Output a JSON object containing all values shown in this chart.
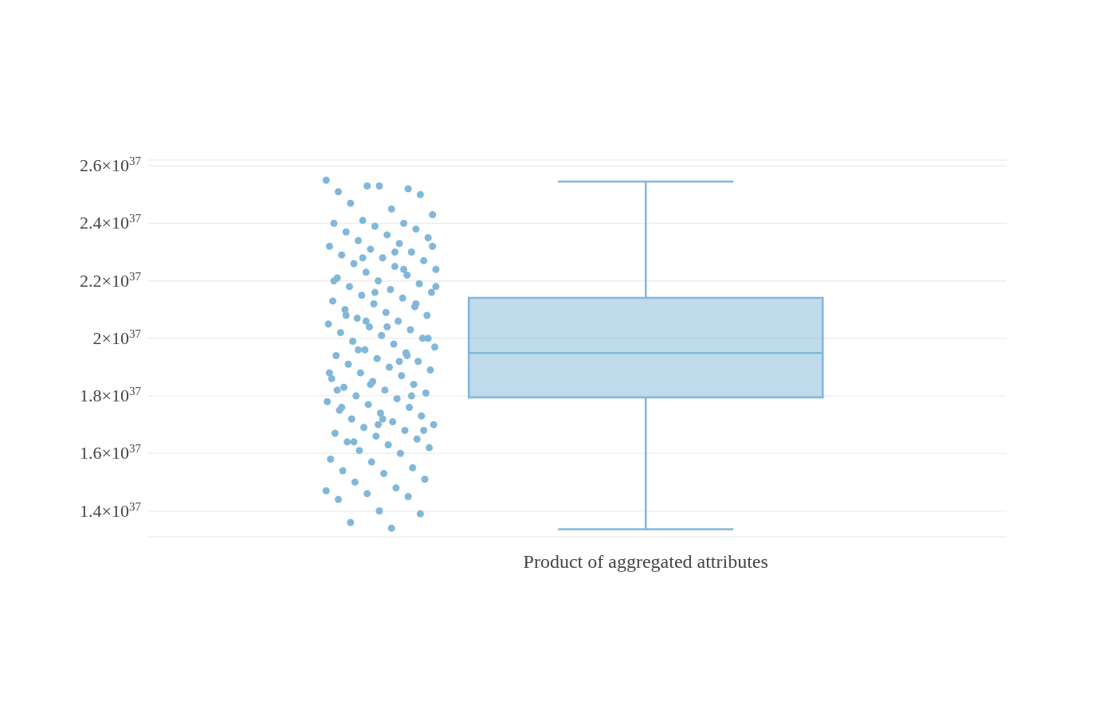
{
  "chart_data": {
    "type": "box",
    "categories": [
      "Product of aggregated attributes"
    ],
    "boxes": [
      {
        "low": 1.336e+37,
        "q1": 1.795e+37,
        "median": 1.949e+37,
        "q3": 2.141e+37,
        "high": 2.545e+37
      }
    ],
    "color": "#82b7d9",
    "series": [
      {
        "type": "scatter",
        "color": "#82b7d9",
        "x": [
          "Product of aggregated attributes",
          "Product of aggregated attributes",
          "Product of aggregated attributes",
          "Product of aggregated attributes",
          "Product of aggregated attributes",
          "Product of aggregated attributes",
          "Product of aggregated attributes",
          "Product of aggregated attributes",
          "Product of aggregated attributes",
          "Product of aggregated attributes",
          "Product of aggregated attributes",
          "Product of aggregated attributes",
          "Product of aggregated attributes",
          "Product of aggregated attributes",
          "Product of aggregated attributes",
          "Product of aggregated attributes",
          "Product of aggregated attributes",
          "Product of aggregated attributes",
          "Product of aggregated attributes",
          "Product of aggregated attributes",
          "Product of aggregated attributes",
          "Product of aggregated attributes",
          "Product of aggregated attributes",
          "Product of aggregated attributes",
          "Product of aggregated attributes",
          "Product of aggregated attributes",
          "Product of aggregated attributes",
          "Product of aggregated attributes",
          "Product of aggregated attributes",
          "Product of aggregated attributes",
          "Product of aggregated attributes",
          "Product of aggregated attributes",
          "Product of aggregated attributes",
          "Product of aggregated attributes",
          "Product of aggregated attributes",
          "Product of aggregated attributes",
          "Product of aggregated attributes",
          "Product of aggregated attributes",
          "Product of aggregated attributes",
          "Product of aggregated attributes",
          "Product of aggregated attributes",
          "Product of aggregated attributes",
          "Product of aggregated attributes",
          "Product of aggregated attributes",
          "Product of aggregated attributes",
          "Product of aggregated attributes",
          "Product of aggregated attributes",
          "Product of aggregated attributes",
          "Product of aggregated attributes",
          "Product of aggregated attributes",
          "Product of aggregated attributes",
          "Product of aggregated attributes",
          "Product of aggregated attributes",
          "Product of aggregated attributes",
          "Product of aggregated attributes",
          "Product of aggregated attributes",
          "Product of aggregated attributes",
          "Product of aggregated attributes",
          "Product of aggregated attributes",
          "Product of aggregated attributes",
          "Product of aggregated attributes",
          "Product of aggregated attributes",
          "Product of aggregated attributes",
          "Product of aggregated attributes",
          "Product of aggregated attributes",
          "Product of aggregated attributes",
          "Product of aggregated attributes",
          "Product of aggregated attributes",
          "Product of aggregated attributes",
          "Product of aggregated attributes",
          "Product of aggregated attributes",
          "Product of aggregated attributes",
          "Product of aggregated attributes",
          "Product of aggregated attributes",
          "Product of aggregated attributes",
          "Product of aggregated attributes",
          "Product of aggregated attributes",
          "Product of aggregated attributes",
          "Product of aggregated attributes",
          "Product of aggregated attributes",
          "Product of aggregated attributes",
          "Product of aggregated attributes",
          "Product of aggregated attributes",
          "Product of aggregated attributes",
          "Product of aggregated attributes",
          "Product of aggregated attributes",
          "Product of aggregated attributes",
          "Product of aggregated attributes",
          "Product of aggregated attributes",
          "Product of aggregated attributes",
          "Product of aggregated attributes",
          "Product of aggregated attributes",
          "Product of aggregated attributes",
          "Product of aggregated attributes",
          "Product of aggregated attributes",
          "Product of aggregated attributes",
          "Product of aggregated attributes",
          "Product of aggregated attributes",
          "Product of aggregated attributes",
          "Product of aggregated attributes",
          "Product of aggregated attributes",
          "Product of aggregated attributes",
          "Product of aggregated attributes",
          "Product of aggregated attributes",
          "Product of aggregated attributes",
          "Product of aggregated attributes",
          "Product of aggregated attributes",
          "Product of aggregated attributes",
          "Product of aggregated attributes",
          "Product of aggregated attributes",
          "Product of aggregated attributes",
          "Product of aggregated attributes",
          "Product of aggregated attributes",
          "Product of aggregated attributes",
          "Product of aggregated attributes",
          "Product of aggregated attributes",
          "Product of aggregated attributes",
          "Product of aggregated attributes",
          "Product of aggregated attributes",
          "Product of aggregated attributes",
          "Product of aggregated attributes",
          "Product of aggregated attributes",
          "Product of aggregated attributes",
          "Product of aggregated attributes",
          "Product of aggregated attributes",
          "Product of aggregated attributes",
          "Product of aggregated attributes",
          "Product of aggregated attributes",
          "Product of aggregated attributes",
          "Product of aggregated attributes",
          "Product of aggregated attributes",
          "Product of aggregated attributes"
        ],
        "values": [
          2.55e+37,
          2.53e+37,
          2.52e+37,
          2.51e+37,
          2.53e+37,
          2.5e+37,
          2.47e+37,
          2.45e+37,
          2.43e+37,
          2.41e+37,
          2.4e+37,
          2.4e+37,
          2.39e+37,
          2.38e+37,
          2.37e+37,
          2.36e+37,
          2.35e+37,
          2.34e+37,
          2.33e+37,
          2.32e+37,
          2.31e+37,
          2.3e+37,
          2.29e+37,
          2.28e+37,
          2.27e+37,
          2.26e+37,
          2.25e+37,
          2.24e+37,
          2.23e+37,
          2.22e+37,
          2.21e+37,
          2.2e+37,
          2.19e+37,
          2.18e+37,
          2.17e+37,
          2.16e+37,
          2.15e+37,
          2.14e+37,
          2.13e+37,
          2.12e+37,
          2.11e+37,
          2.1e+37,
          2.09e+37,
          2.08e+37,
          2.07e+37,
          2.06e+37,
          2.05e+37,
          2.04e+37,
          2.03e+37,
          2.02e+37,
          2.01e+37,
          2e+37,
          1.99e+37,
          1.98e+37,
          1.97e+37,
          1.96e+37,
          1.95e+37,
          1.94e+37,
          1.93e+37,
          1.92e+37,
          1.91e+37,
          1.9e+37,
          1.89e+37,
          1.88e+37,
          1.87e+37,
          1.86e+37,
          1.85e+37,
          1.84e+37,
          1.83e+37,
          1.82e+37,
          1.81e+37,
          1.8e+37,
          1.79e+37,
          1.78e+37,
          1.77e+37,
          1.76e+37,
          1.75e+37,
          1.74e+37,
          1.73e+37,
          1.72e+37,
          1.71e+37,
          1.7e+37,
          1.69e+37,
          1.68e+37,
          1.67e+37,
          1.66e+37,
          1.65e+37,
          1.64e+37,
          1.63e+37,
          1.62e+37,
          1.61e+37,
          1.6e+37,
          1.58e+37,
          1.57e+37,
          1.55e+37,
          1.54e+37,
          1.53e+37,
          1.51e+37,
          1.5e+37,
          1.48e+37,
          1.47e+37,
          1.46e+37,
          1.45e+37,
          1.44e+37,
          1.4e+37,
          1.39e+37,
          1.36e+37,
          1.34e+37,
          2.32e+37,
          2.28e+37,
          2.24e+37,
          2.2e+37,
          2.16e+37,
          2.12e+37,
          2.08e+37,
          2.04e+37,
          2e+37,
          1.96e+37,
          1.92e+37,
          1.88e+37,
          1.84e+37,
          1.8e+37,
          1.76e+37,
          1.72e+37,
          1.68e+37,
          1.64e+37,
          2.3e+37,
          2.18e+37,
          2.06e+37,
          1.94e+37,
          1.82e+37,
          1.7e+37
        ]
      }
    ],
    "ylim": [
      1.31e+37,
      2.62e+37
    ],
    "yticks": [
      {
        "value": 1.4e+37,
        "label": "1.4×10$^{37}$"
      },
      {
        "value": 1.6e+37,
        "label": "1.6×10$^{37}$"
      },
      {
        "value": 1.8e+37,
        "label": "1.8×10$^{37}$"
      },
      {
        "value": 2e+37,
        "label": "2×10$^{37}$"
      },
      {
        "value": 2.2e+37,
        "label": "2.2×10$^{37}$"
      },
      {
        "value": 2.4e+37,
        "label": "2.4×10$^{37}$"
      },
      {
        "value": 2.6e+37,
        "label": "2.6×10$^{37}$"
      }
    ],
    "grid": "y"
  }
}
